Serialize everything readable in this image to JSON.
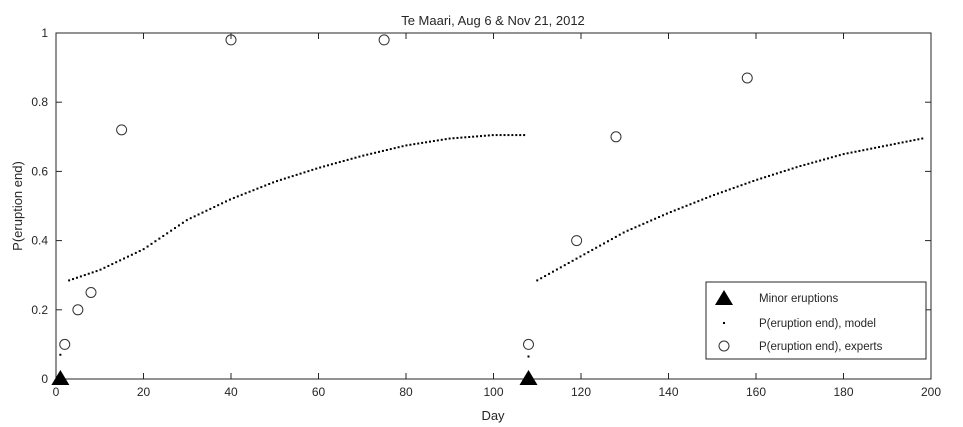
{
  "chart_data": {
    "type": "scatter",
    "title": "Te Maari, Aug 6 & Nov 21, 2012",
    "xlabel": "Day",
    "ylabel": "P(eruption end)",
    "xlim": [
      0,
      200
    ],
    "ylim": [
      0,
      1
    ],
    "xticks": [
      "0",
      "20",
      "40",
      "60",
      "80",
      "100",
      "120",
      "140",
      "160",
      "180",
      "200"
    ],
    "yticks": [
      "0",
      "0.2",
      "0.4",
      "0.6",
      "0.8",
      "1"
    ],
    "legend_position": "bottom-right",
    "series": [
      {
        "name": "Minor eruptions",
        "marker": "filled-triangle",
        "color": "#000000",
        "points": [
          [
            1,
            0
          ],
          [
            108,
            0
          ]
        ]
      },
      {
        "name": "P(eruption end), model",
        "marker": "dot",
        "color": "#000000",
        "segments": [
          {
            "x": [
              1,
              1.01
            ],
            "y": [
              0.07,
              0.07
            ]
          },
          {
            "x": [
              3,
              10,
              20,
              30,
              40,
              50,
              60,
              70,
              80,
              90,
              100,
              107
            ],
            "y": [
              0.285,
              0.315,
              0.375,
              0.46,
              0.52,
              0.57,
              0.61,
              0.645,
              0.675,
              0.695,
              0.705,
              0.705
            ]
          },
          {
            "x": [
              108,
              108.01
            ],
            "y": [
              0.065,
              0.065
            ]
          },
          {
            "x": [
              110,
              120,
              130,
              140,
              150,
              160,
              170,
              180,
              190,
              198
            ],
            "y": [
              0.285,
              0.355,
              0.425,
              0.48,
              0.53,
              0.575,
              0.615,
              0.65,
              0.675,
              0.695
            ]
          }
        ]
      },
      {
        "name": "P(eruption end), experts",
        "marker": "open-circle",
        "color": "#000000",
        "points": [
          [
            2,
            0.1
          ],
          [
            5,
            0.2
          ],
          [
            8,
            0.25
          ],
          [
            15,
            0.72
          ],
          [
            40,
            0.98
          ],
          [
            75,
            0.98
          ],
          [
            108,
            0.1
          ],
          [
            119,
            0.4
          ],
          [
            128,
            0.7
          ],
          [
            158,
            0.87
          ]
        ]
      }
    ]
  }
}
